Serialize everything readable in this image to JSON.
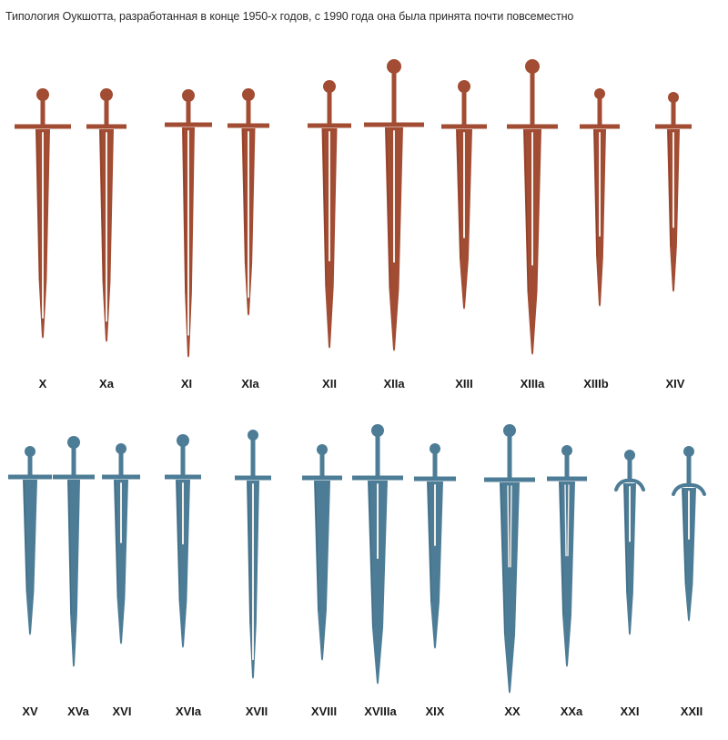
{
  "caption": "Типология Оукшотта, разработанная в конце 1950-х годов, с 1990 года она была принята почти повсеместно",
  "colors": {
    "early_row": "#a24c33",
    "early_row_shade": "#7a3320",
    "late_row": "#4d7c96",
    "late_row_shade": "#345a70",
    "fuller_highlight": "#f4efe9",
    "label_text": "#1a1a1a"
  },
  "rows": [
    {
      "row_id": "top-row",
      "color_key": "early_row",
      "types": [
        {
          "type": "X",
          "fuller": "long"
        },
        {
          "type": "Xa",
          "fuller": "long"
        },
        {
          "type": "XI",
          "fuller": "long"
        },
        {
          "type": "XIa",
          "fuller": "long"
        },
        {
          "type": "XII",
          "fuller": "medium"
        },
        {
          "type": "XIIa",
          "fuller": "medium"
        },
        {
          "type": "XIII",
          "fuller": "medium"
        },
        {
          "type": "XIIIa",
          "fuller": "medium"
        },
        {
          "type": "XIIIb",
          "fuller": "medium"
        },
        {
          "type": "XIV",
          "fuller": "medium"
        }
      ]
    },
    {
      "row_id": "bottom-row",
      "color_key": "late_row",
      "types": [
        {
          "type": "XV",
          "fuller": "none"
        },
        {
          "type": "XVa",
          "fuller": "none"
        },
        {
          "type": "XVI",
          "fuller": "short"
        },
        {
          "type": "XVIa",
          "fuller": "short"
        },
        {
          "type": "XVII",
          "fuller": "long"
        },
        {
          "type": "XVIII",
          "fuller": "none"
        },
        {
          "type": "XVIIIa",
          "fuller": "short"
        },
        {
          "type": "XIX",
          "fuller": "short"
        },
        {
          "type": "XX",
          "fuller": "double"
        },
        {
          "type": "XXa",
          "fuller": "double"
        },
        {
          "type": "XXI",
          "fuller": "short"
        },
        {
          "type": "XXII",
          "fuller": "short"
        }
      ]
    }
  ]
}
